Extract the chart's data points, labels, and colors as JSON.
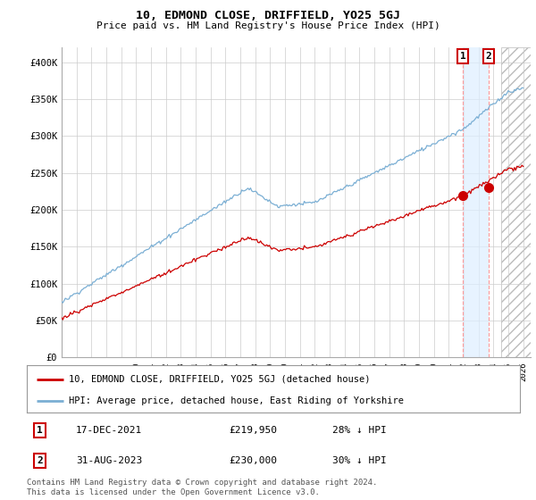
{
  "title": "10, EDMOND CLOSE, DRIFFIELD, YO25 5GJ",
  "subtitle": "Price paid vs. HM Land Registry's House Price Index (HPI)",
  "ylabel_ticks": [
    "£0",
    "£50K",
    "£100K",
    "£150K",
    "£200K",
    "£250K",
    "£300K",
    "£350K",
    "£400K"
  ],
  "ytick_values": [
    0,
    50000,
    100000,
    150000,
    200000,
    250000,
    300000,
    350000,
    400000
  ],
  "ylim": [
    0,
    420000
  ],
  "xlim_start": 1995.0,
  "xlim_end": 2026.5,
  "hpi_color": "#7bafd4",
  "paid_color": "#cc0000",
  "marker1_date": 2021.96,
  "marker1_price": 219950,
  "marker2_date": 2023.67,
  "marker2_price": 230000,
  "marker1_label": "17-DEC-2021",
  "marker1_amount": "£219,950",
  "marker1_pct": "28% ↓ HPI",
  "marker2_label": "31-AUG-2023",
  "marker2_amount": "£230,000",
  "marker2_pct": "30% ↓ HPI",
  "legend_line1": "10, EDMOND CLOSE, DRIFFIELD, YO25 5GJ (detached house)",
  "legend_line2": "HPI: Average price, detached house, East Riding of Yorkshire",
  "footnote": "Contains HM Land Registry data © Crown copyright and database right 2024.\nThis data is licensed under the Open Government Licence v3.0.",
  "background_color": "#ffffff",
  "grid_color": "#cccccc",
  "annotation_box_color": "#cc0000"
}
